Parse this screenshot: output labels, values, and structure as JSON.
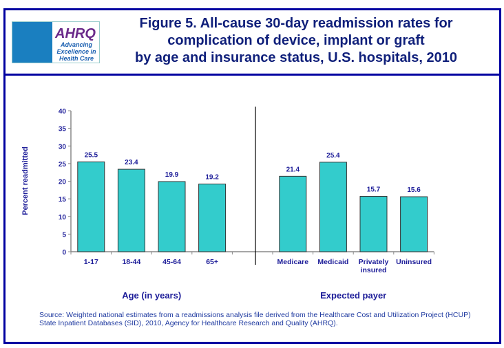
{
  "title": [
    "Figure 5. All-cause 30-day readmission rates for",
    "complication of device, implant or graft",
    "by age and insurance status, U.S. hospitals, 2010"
  ],
  "logo": {
    "brand": "AHRQ",
    "tagline": [
      "Advancing",
      "Excellence in",
      "Health Care"
    ]
  },
  "source": "Source: Weighted national estimates from a readmissions analysis file derived from the Healthcare Cost and Utilization Project (HCUP) State Inpatient Databases (SID), 2010, Agency for Healthcare Research and Quality (AHRQ).",
  "colors": {
    "bar": "#33cccc",
    "frame": "#0000a0",
    "text": "#1d1d99"
  },
  "chart_data": {
    "type": "bar",
    "ylabel": "Percent readmitted",
    "ylim": [
      0,
      40
    ],
    "yticks": [
      0,
      5,
      10,
      15,
      20,
      25,
      30,
      35,
      40
    ],
    "grid": false,
    "groups": [
      {
        "xlabel": "Age (in years)",
        "categories": [
          "1-17",
          "18-44",
          "45-64",
          "65+"
        ],
        "values": [
          25.5,
          23.4,
          19.9,
          19.2
        ]
      },
      {
        "xlabel": "Expected payer",
        "categories": [
          "Medicare",
          "Medicaid",
          "Privately insured",
          "Uninsured"
        ],
        "values": [
          21.4,
          25.4,
          15.7,
          15.6
        ]
      }
    ]
  }
}
